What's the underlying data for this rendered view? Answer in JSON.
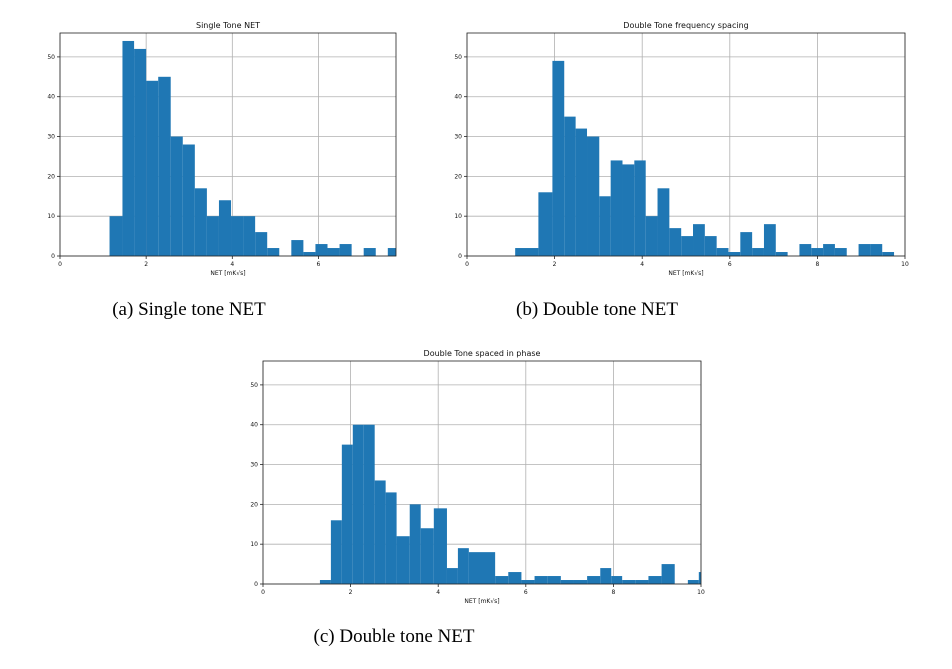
{
  "chart_data": [
    {
      "type": "histogram",
      "title": "Single Tone NET",
      "xlabel": "NET [mK√s]",
      "xlim": [
        0,
        7.8
      ],
      "ylim": [
        0,
        56
      ],
      "xticks": [
        0,
        2,
        4,
        6
      ],
      "yticks": [
        0,
        10,
        20,
        30,
        40,
        50
      ],
      "grid": true,
      "color": "#1f77b4",
      "caption": "(a) Single tone NET",
      "bins": [
        {
          "x0": 1.15,
          "x1": 1.45,
          "y": 10
        },
        {
          "x0": 1.45,
          "x1": 1.72,
          "y": 54
        },
        {
          "x0": 1.72,
          "x1": 2.0,
          "y": 52
        },
        {
          "x0": 2.0,
          "x1": 2.28,
          "y": 44
        },
        {
          "x0": 2.28,
          "x1": 2.57,
          "y": 45
        },
        {
          "x0": 2.57,
          "x1": 2.85,
          "y": 30
        },
        {
          "x0": 2.85,
          "x1": 3.13,
          "y": 28
        },
        {
          "x0": 3.13,
          "x1": 3.41,
          "y": 17
        },
        {
          "x0": 3.41,
          "x1": 3.69,
          "y": 10
        },
        {
          "x0": 3.69,
          "x1": 3.97,
          "y": 14
        },
        {
          "x0": 3.97,
          "x1": 4.25,
          "y": 10
        },
        {
          "x0": 4.25,
          "x1": 4.53,
          "y": 10
        },
        {
          "x0": 4.53,
          "x1": 4.81,
          "y": 6
        },
        {
          "x0": 4.81,
          "x1": 5.09,
          "y": 2
        },
        {
          "x0": 5.09,
          "x1": 5.37,
          "y": 0
        },
        {
          "x0": 5.37,
          "x1": 5.65,
          "y": 4
        },
        {
          "x0": 5.65,
          "x1": 5.93,
          "y": 1
        },
        {
          "x0": 5.93,
          "x1": 6.21,
          "y": 3
        },
        {
          "x0": 6.21,
          "x1": 6.49,
          "y": 2
        },
        {
          "x0": 6.49,
          "x1": 6.77,
          "y": 3
        },
        {
          "x0": 6.77,
          "x1": 7.05,
          "y": 0
        },
        {
          "x0": 7.05,
          "x1": 7.33,
          "y": 2
        },
        {
          "x0": 7.33,
          "x1": 7.61,
          "y": 0
        },
        {
          "x0": 7.61,
          "x1": 7.89,
          "y": 2
        }
      ]
    },
    {
      "type": "histogram",
      "title": "Double Tone frequency spacing",
      "xlabel": "NET [mK√s]",
      "xlim": [
        0,
        10
      ],
      "ylim": [
        0,
        56
      ],
      "xticks": [
        0,
        2,
        4,
        6,
        8,
        10
      ],
      "yticks": [
        0,
        10,
        20,
        30,
        40,
        50
      ],
      "grid": true,
      "color": "#1f77b4",
      "caption": "(b) Double tone NET",
      "bins": [
        {
          "x0": 1.1,
          "x1": 1.63,
          "y": 2
        },
        {
          "x0": 1.63,
          "x1": 1.95,
          "y": 16
        },
        {
          "x0": 1.95,
          "x1": 2.22,
          "y": 49
        },
        {
          "x0": 2.22,
          "x1": 2.48,
          "y": 35
        },
        {
          "x0": 2.48,
          "x1": 2.74,
          "y": 32
        },
        {
          "x0": 2.74,
          "x1": 3.02,
          "y": 30
        },
        {
          "x0": 3.02,
          "x1": 3.28,
          "y": 15
        },
        {
          "x0": 3.28,
          "x1": 3.55,
          "y": 24
        },
        {
          "x0": 3.55,
          "x1": 3.82,
          "y": 23
        },
        {
          "x0": 3.82,
          "x1": 4.08,
          "y": 24
        },
        {
          "x0": 4.08,
          "x1": 4.35,
          "y": 10
        },
        {
          "x0": 4.35,
          "x1": 4.62,
          "y": 17
        },
        {
          "x0": 4.62,
          "x1": 4.89,
          "y": 7
        },
        {
          "x0": 4.89,
          "x1": 5.16,
          "y": 5
        },
        {
          "x0": 5.16,
          "x1": 5.43,
          "y": 8
        },
        {
          "x0": 5.43,
          "x1": 5.7,
          "y": 5
        },
        {
          "x0": 5.7,
          "x1": 5.97,
          "y": 2
        },
        {
          "x0": 5.97,
          "x1": 6.24,
          "y": 1
        },
        {
          "x0": 6.24,
          "x1": 6.51,
          "y": 6
        },
        {
          "x0": 6.51,
          "x1": 6.78,
          "y": 2
        },
        {
          "x0": 6.78,
          "x1": 7.05,
          "y": 8
        },
        {
          "x0": 7.05,
          "x1": 7.32,
          "y": 1
        },
        {
          "x0": 7.32,
          "x1": 7.59,
          "y": 0
        },
        {
          "x0": 7.59,
          "x1": 7.86,
          "y": 3
        },
        {
          "x0": 7.86,
          "x1": 8.13,
          "y": 2
        },
        {
          "x0": 8.13,
          "x1": 8.4,
          "y": 3
        },
        {
          "x0": 8.4,
          "x1": 8.67,
          "y": 2
        },
        {
          "x0": 8.67,
          "x1": 8.94,
          "y": 0
        },
        {
          "x0": 8.94,
          "x1": 9.21,
          "y": 3
        },
        {
          "x0": 9.21,
          "x1": 9.48,
          "y": 3
        },
        {
          "x0": 9.48,
          "x1": 9.75,
          "y": 1
        }
      ]
    },
    {
      "type": "histogram",
      "title": "Double Tone spaced in phase",
      "xlabel": "NET [mK√s]",
      "xlim": [
        0,
        10
      ],
      "ylim": [
        0,
        56
      ],
      "xticks": [
        0,
        2,
        4,
        6,
        8,
        10
      ],
      "yticks": [
        0,
        10,
        20,
        30,
        40,
        50
      ],
      "grid": true,
      "color": "#1f77b4",
      "caption": "(c) Double tone NET",
      "bins": [
        {
          "x0": 1.3,
          "x1": 1.55,
          "y": 1
        },
        {
          "x0": 1.55,
          "x1": 1.8,
          "y": 16
        },
        {
          "x0": 1.8,
          "x1": 2.05,
          "y": 35
        },
        {
          "x0": 2.05,
          "x1": 2.3,
          "y": 40
        },
        {
          "x0": 2.3,
          "x1": 2.55,
          "y": 40
        },
        {
          "x0": 2.55,
          "x1": 2.8,
          "y": 26
        },
        {
          "x0": 2.8,
          "x1": 3.05,
          "y": 23
        },
        {
          "x0": 3.05,
          "x1": 3.35,
          "y": 12
        },
        {
          "x0": 3.35,
          "x1": 3.6,
          "y": 20
        },
        {
          "x0": 3.6,
          "x1": 3.9,
          "y": 14
        },
        {
          "x0": 3.9,
          "x1": 4.2,
          "y": 19
        },
        {
          "x0": 4.2,
          "x1": 4.45,
          "y": 4
        },
        {
          "x0": 4.45,
          "x1": 4.7,
          "y": 9
        },
        {
          "x0": 4.7,
          "x1": 5.0,
          "y": 8
        },
        {
          "x0": 5.0,
          "x1": 5.3,
          "y": 8
        },
        {
          "x0": 5.3,
          "x1": 5.6,
          "y": 2
        },
        {
          "x0": 5.6,
          "x1": 5.9,
          "y": 3
        },
        {
          "x0": 5.9,
          "x1": 6.2,
          "y": 1
        },
        {
          "x0": 6.2,
          "x1": 6.5,
          "y": 2
        },
        {
          "x0": 6.5,
          "x1": 6.8,
          "y": 2
        },
        {
          "x0": 6.8,
          "x1": 7.1,
          "y": 1
        },
        {
          "x0": 7.1,
          "x1": 7.4,
          "y": 1
        },
        {
          "x0": 7.4,
          "x1": 7.7,
          "y": 2
        },
        {
          "x0": 7.7,
          "x1": 7.95,
          "y": 4
        },
        {
          "x0": 7.95,
          "x1": 8.2,
          "y": 2
        },
        {
          "x0": 8.2,
          "x1": 8.5,
          "y": 1
        },
        {
          "x0": 8.5,
          "x1": 8.8,
          "y": 1
        },
        {
          "x0": 8.8,
          "x1": 9.1,
          "y": 2
        },
        {
          "x0": 9.1,
          "x1": 9.4,
          "y": 5
        },
        {
          "x0": 9.4,
          "x1": 9.7,
          "y": 0
        },
        {
          "x0": 9.7,
          "x1": 9.95,
          "y": 1
        },
        {
          "x0": 9.95,
          "x1": 10.2,
          "y": 3
        }
      ]
    }
  ]
}
